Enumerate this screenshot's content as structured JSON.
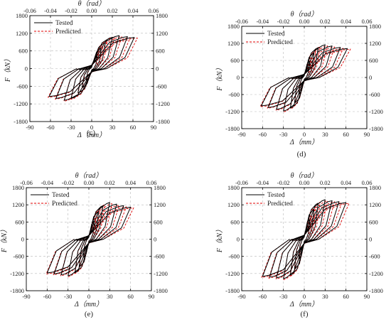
{
  "chart_data": [
    {
      "type": "line",
      "panel_label": "(c)",
      "xlabel": "Δ（mm）",
      "ylabel": "F（kN）",
      "x2label": "θ（rad）",
      "xlim": [
        -90,
        90
      ],
      "ylim": [
        -1800,
        1800
      ],
      "x2lim": [
        -0.06,
        0.06
      ],
      "xticks": [
        "-90",
        "-60",
        "-30",
        "0",
        "30",
        "60",
        "90"
      ],
      "yticks": [
        "-1800",
        "-1200",
        "-600",
        "0",
        "600",
        "1200",
        "1800"
      ],
      "x2ticks": [
        "-0.06",
        "-0.04",
        "-0.02",
        "0.00",
        "0.02",
        "0.04",
        "0.06"
      ],
      "grid": true,
      "legend": "top-left",
      "envelope": {
        "peak_pos": [
          40,
          1120
        ],
        "ult_pos": [
          62,
          1060
        ],
        "peak_neg": [
          -42,
          -1080
        ],
        "ult_neg": [
          -62,
          -950
        ],
        "cycles": [
          8,
          14,
          20,
          30,
          40,
          52,
          62
        ]
      },
      "series": [
        {
          "name": "Tested",
          "color": "#000000",
          "dash": "solid"
        },
        {
          "name": "Predicted",
          "color": "#e00000",
          "dash": "dashed"
        }
      ]
    },
    {
      "type": "line",
      "panel_label": "(d)",
      "xlabel": "Δ（mm）",
      "ylabel": "F（kN）",
      "x2label": "θ（rad）",
      "xlim": [
        -90,
        90
      ],
      "ylim": [
        -1800,
        1800
      ],
      "x2lim": [
        -0.06,
        0.06
      ],
      "xticks": [
        "-90",
        "-60",
        "-30",
        "0",
        "30",
        "60",
        "90"
      ],
      "yticks": [
        "-1800",
        "-1200",
        "-600",
        "0",
        "600",
        "1200",
        "1800"
      ],
      "x2ticks": [
        "-0.06",
        "-0.04",
        "-0.02",
        "0.00",
        "0.02",
        "0.04",
        "0.06"
      ],
      "grid": true,
      "legend": "top-left",
      "envelope": {
        "peak_pos": [
          30,
          1150
        ],
        "ult_pos": [
          62,
          1020
        ],
        "peak_neg": [
          -30,
          -1180
        ],
        "ult_neg": [
          -62,
          -1000
        ],
        "cycles": [
          8,
          14,
          20,
          30,
          40,
          52,
          62
        ]
      },
      "series": [
        {
          "name": "Tested",
          "color": "#000000",
          "dash": "solid"
        },
        {
          "name": "Predicted",
          "color": "#e00000",
          "dash": "dashed"
        }
      ]
    },
    {
      "type": "line",
      "panel_label": "(e)",
      "xlabel": "Δ（mm）",
      "ylabel": "F（kN）",
      "x2label": "θ（rad）",
      "xlim": [
        -90,
        90
      ],
      "ylim": [
        -1800,
        1800
      ],
      "x2lim": [
        -0.06,
        0.06
      ],
      "xticks": [
        "-90",
        "-60",
        "-30",
        "0",
        "30",
        "60",
        "90"
      ],
      "yticks": [
        "-1800",
        "-1200",
        "-600",
        "0",
        "600",
        "1200",
        "1800"
      ],
      "x2ticks": [
        "-0.06",
        "-0.04",
        "-0.02",
        "0.00",
        "0.02",
        "0.04",
        "0.06"
      ],
      "grid": true,
      "legend": "top-left",
      "envelope": {
        "peak_pos": [
          30,
          1280
        ],
        "ult_pos": [
          60,
          1120
        ],
        "peak_neg": [
          -30,
          -1280
        ],
        "ult_neg": [
          -60,
          -1180
        ],
        "cycles": [
          8,
          14,
          20,
          30,
          40,
          50,
          60
        ]
      },
      "series": [
        {
          "name": "Tested",
          "color": "#000000",
          "dash": "solid"
        },
        {
          "name": "Predicted",
          "color": "#e00000",
          "dash": "dashed"
        }
      ]
    },
    {
      "type": "line",
      "panel_label": "(f)",
      "xlabel": "Δ（mm）",
      "ylabel": "F（kN）",
      "x2label": "θ（rad）",
      "xlim": [
        -90,
        90
      ],
      "ylim": [
        -1800,
        1800
      ],
      "x2lim": [
        -0.06,
        0.06
      ],
      "xticks": [
        "-90",
        "-60",
        "-30",
        "0",
        "30",
        "60",
        "90"
      ],
      "yticks": [
        "-1800",
        "-1200",
        "-600",
        "0",
        "600",
        "1200",
        "1800"
      ],
      "x2ticks": [
        "-0.06",
        "-0.04",
        "-0.02",
        "0.00",
        "0.02",
        "0.04",
        "0.06"
      ],
      "grid": true,
      "legend": "top-left",
      "envelope": {
        "peak_pos": [
          30,
          1380
        ],
        "ult_pos": [
          60,
          1280
        ],
        "peak_neg": [
          -30,
          -1380
        ],
        "ult_neg": [
          -60,
          -1300
        ],
        "cycles": [
          8,
          14,
          20,
          30,
          40,
          50,
          60
        ]
      },
      "series": [
        {
          "name": "Tested",
          "color": "#000000",
          "dash": "solid"
        },
        {
          "name": "Predicted",
          "color": "#e00000",
          "dash": "dashed"
        }
      ]
    }
  ]
}
